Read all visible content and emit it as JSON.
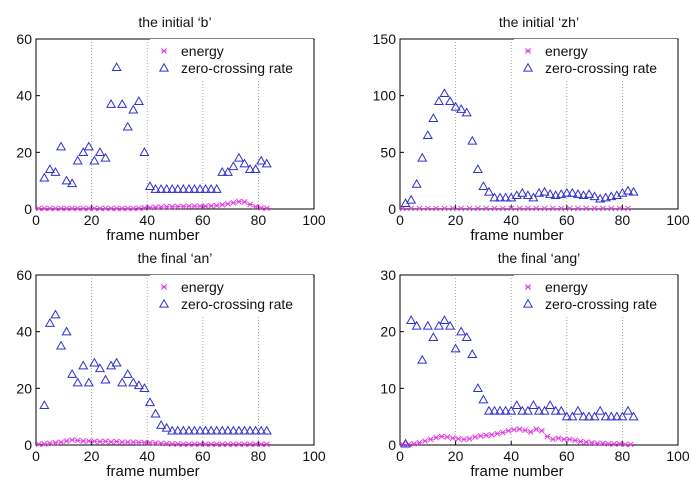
{
  "chart_data": [
    {
      "type": "scatter",
      "title": "the initial ‘b’",
      "xlabel": "frame number",
      "ylabel": "",
      "xlim": [
        0,
        100
      ],
      "ylim": [
        0,
        60
      ],
      "xticks": [
        "0",
        "20",
        "40",
        "60",
        "80",
        "100"
      ],
      "yticks": [
        "0",
        "20",
        "40",
        "60"
      ],
      "grid": "vertical dotted",
      "legend_position": "top-right",
      "series": [
        {
          "name": "energy",
          "marker": "star",
          "color": "#e040e0",
          "x": [
            1,
            3,
            5,
            7,
            9,
            11,
            13,
            15,
            17,
            19,
            21,
            23,
            25,
            27,
            29,
            31,
            33,
            35,
            37,
            39,
            41,
            43,
            45,
            47,
            49,
            51,
            53,
            55,
            57,
            59,
            61,
            63,
            65,
            67,
            69,
            71,
            73,
            75,
            77,
            79,
            81,
            83
          ],
          "y": [
            0.2,
            0.2,
            0.2,
            0.2,
            0.2,
            0.2,
            0.2,
            0.2,
            0.2,
            0.2,
            0.2,
            0.2,
            0.2,
            0.2,
            0.2,
            0.2,
            0.2,
            0.2,
            0.3,
            0.4,
            0.5,
            0.6,
            0.7,
            0.8,
            0.8,
            0.9,
            0.9,
            1.0,
            1.0,
            1.0,
            1.0,
            1.1,
            1.2,
            1.5,
            1.8,
            2.2,
            2.6,
            2.5,
            1.6,
            0.8,
            0.4,
            0.3
          ]
        },
        {
          "name": "zero-crossing rate",
          "marker": "triangle",
          "color": "#3030d0",
          "x": [
            3,
            5,
            7,
            9,
            11,
            13,
            15,
            17,
            19,
            21,
            23,
            25,
            27,
            29,
            31,
            33,
            35,
            37,
            39,
            41,
            43,
            45,
            47,
            49,
            51,
            53,
            55,
            57,
            59,
            61,
            63,
            65,
            67,
            69,
            71,
            73,
            75,
            77,
            79,
            81,
            83
          ],
          "y": [
            11,
            14,
            13,
            22,
            10,
            9,
            17,
            20,
            22,
            17,
            20,
            18,
            37,
            50,
            37,
            29,
            35,
            38,
            20,
            8,
            7,
            7,
            7,
            7,
            7,
            7,
            7,
            7,
            7,
            7,
            7,
            7,
            13,
            13,
            15,
            18,
            16,
            14,
            14,
            17,
            16
          ]
        }
      ]
    },
    {
      "type": "scatter",
      "title": "the initial ‘zh’",
      "xlabel": "frame number",
      "ylabel": "",
      "xlim": [
        0,
        100
      ],
      "ylim": [
        0,
        150
      ],
      "xticks": [
        "0",
        "20",
        "40",
        "60",
        "80",
        "100"
      ],
      "yticks": [
        "0",
        "50",
        "100",
        "150"
      ],
      "grid": "vertical dotted",
      "legend_position": "top-right",
      "series": [
        {
          "name": "energy",
          "marker": "star",
          "color": "#e040e0",
          "x": [
            1,
            4,
            7,
            10,
            13,
            16,
            19,
            22,
            25,
            28,
            31,
            34,
            37,
            40,
            43,
            46,
            49,
            52,
            55,
            58,
            61,
            64,
            67,
            70,
            73,
            76,
            79,
            82
          ],
          "y": [
            0.5,
            0.5,
            0.5,
            0.5,
            0.5,
            0.5,
            0.5,
            0.5,
            0.5,
            0.5,
            0.5,
            0.5,
            0.5,
            0.5,
            0.5,
            0.5,
            0.5,
            0.5,
            0.5,
            0.5,
            0.5,
            0.5,
            0.5,
            0.5,
            0.5,
            0.5,
            0.5,
            0.5
          ]
        },
        {
          "name": "zero-crossing rate",
          "marker": "triangle",
          "color": "#3030d0",
          "x": [
            2,
            4,
            6,
            8,
            10,
            12,
            14,
            16,
            18,
            20,
            22,
            24,
            26,
            28,
            30,
            32,
            34,
            36,
            38,
            40,
            42,
            44,
            46,
            48,
            50,
            52,
            54,
            56,
            58,
            60,
            62,
            64,
            66,
            68,
            70,
            72,
            74,
            76,
            78,
            80,
            82,
            84
          ],
          "y": [
            5,
            8,
            22,
            45,
            65,
            80,
            95,
            102,
            95,
            90,
            88,
            85,
            60,
            35,
            20,
            15,
            10,
            10,
            10,
            10,
            12,
            14,
            12,
            10,
            14,
            15,
            13,
            12,
            13,
            14,
            14,
            13,
            12,
            13,
            11,
            9,
            10,
            11,
            12,
            14,
            16,
            15
          ]
        }
      ]
    },
    {
      "type": "scatter",
      "title": "the final ‘an’",
      "xlabel": "frame number",
      "ylabel": "",
      "xlim": [
        0,
        100
      ],
      "ylim": [
        0,
        60
      ],
      "xticks": [
        "0",
        "20",
        "40",
        "60",
        "80",
        "100"
      ],
      "yticks": [
        "0",
        "20",
        "40",
        "60"
      ],
      "grid": "vertical dotted",
      "legend_position": "top-right",
      "series": [
        {
          "name": "energy",
          "marker": "star",
          "color": "#e040e0",
          "x": [
            1,
            3,
            5,
            7,
            9,
            11,
            13,
            15,
            17,
            19,
            21,
            23,
            25,
            27,
            29,
            31,
            33,
            35,
            37,
            39,
            41,
            43,
            45,
            47,
            49,
            51,
            53,
            55,
            57,
            59,
            61,
            63,
            65,
            67,
            69,
            71,
            73,
            75,
            77,
            79,
            81,
            83
          ],
          "y": [
            0.3,
            0.4,
            0.6,
            0.8,
            1.0,
            1.4,
            1.8,
            1.6,
            1.4,
            1.4,
            1.3,
            1.2,
            1.3,
            1.1,
            1.2,
            1.0,
            1.0,
            1.0,
            0.9,
            0.9,
            0.8,
            0.7,
            0.6,
            0.5,
            0.4,
            0.4,
            0.3,
            0.3,
            0.3,
            0.3,
            0.3,
            0.3,
            0.3,
            0.3,
            0.3,
            0.3,
            0.3,
            0.3,
            0.3,
            0.3,
            0.3,
            0.3
          ]
        },
        {
          "name": "zero-crossing rate",
          "marker": "triangle",
          "color": "#3030d0",
          "x": [
            3,
            5,
            7,
            9,
            11,
            13,
            15,
            17,
            19,
            21,
            23,
            25,
            27,
            29,
            31,
            33,
            35,
            37,
            39,
            41,
            43,
            45,
            47,
            49,
            51,
            53,
            55,
            57,
            59,
            61,
            63,
            65,
            67,
            69,
            71,
            73,
            75,
            77,
            79,
            81,
            83
          ],
          "y": [
            14,
            43,
            46,
            35,
            40,
            25,
            22,
            28,
            22,
            29,
            27,
            23,
            28,
            29,
            22,
            25,
            22,
            21,
            20,
            15,
            11,
            7,
            6,
            5,
            5,
            5,
            5,
            5,
            5,
            5,
            5,
            5,
            5,
            5,
            5,
            5,
            5,
            5,
            5,
            5,
            5
          ]
        }
      ]
    },
    {
      "type": "scatter",
      "title": "the final ‘ang’",
      "xlabel": "frame number",
      "ylabel": "",
      "xlim": [
        0,
        100
      ],
      "ylim": [
        0,
        30
      ],
      "xticks": [
        "0",
        "20",
        "40",
        "60",
        "80",
        "100"
      ],
      "yticks": [
        "0",
        "10",
        "20",
        "30"
      ],
      "grid": "vertical dotted",
      "legend_position": "top-right",
      "series": [
        {
          "name": "energy",
          "marker": "star",
          "color": "#e040e0",
          "x": [
            1,
            3,
            5,
            7,
            9,
            11,
            13,
            15,
            17,
            19,
            21,
            23,
            25,
            27,
            29,
            31,
            33,
            35,
            37,
            39,
            41,
            43,
            45,
            47,
            49,
            51,
            53,
            55,
            57,
            59,
            61,
            63,
            65,
            67,
            69,
            71,
            73,
            75,
            77,
            79,
            81,
            83
          ],
          "y": [
            0.1,
            0.1,
            0.2,
            0.4,
            0.7,
            1.0,
            1.3,
            1.5,
            1.4,
            1.2,
            1.1,
            1.0,
            1.1,
            1.4,
            1.6,
            1.7,
            1.8,
            2.0,
            2.2,
            2.5,
            2.7,
            2.8,
            2.6,
            2.3,
            2.8,
            2.5,
            1.5,
            1.0,
            1.2,
            1.0,
            1.0,
            0.8,
            0.6,
            0.5,
            0.4,
            0.3,
            0.3,
            0.2,
            0.2,
            0.2,
            0.1,
            0.1
          ]
        },
        {
          "name": "zero-crossing rate",
          "marker": "triangle",
          "color": "#3030d0",
          "x": [
            2,
            4,
            6,
            8,
            10,
            12,
            14,
            16,
            18,
            20,
            22,
            24,
            26,
            28,
            30,
            32,
            34,
            36,
            38,
            40,
            42,
            44,
            46,
            48,
            50,
            52,
            54,
            56,
            58,
            60,
            62,
            64,
            66,
            68,
            70,
            72,
            74,
            76,
            78,
            80,
            82,
            84
          ],
          "y": [
            0.2,
            22,
            21,
            15,
            21,
            19,
            21,
            22,
            21,
            17,
            20,
            19,
            16,
            10,
            8,
            6,
            6,
            6,
            6,
            6,
            7,
            6,
            6,
            7,
            6,
            6,
            7,
            6,
            6,
            5,
            5,
            6,
            5,
            5,
            5,
            6,
            5,
            5,
            5,
            5,
            6,
            5
          ]
        }
      ]
    }
  ]
}
